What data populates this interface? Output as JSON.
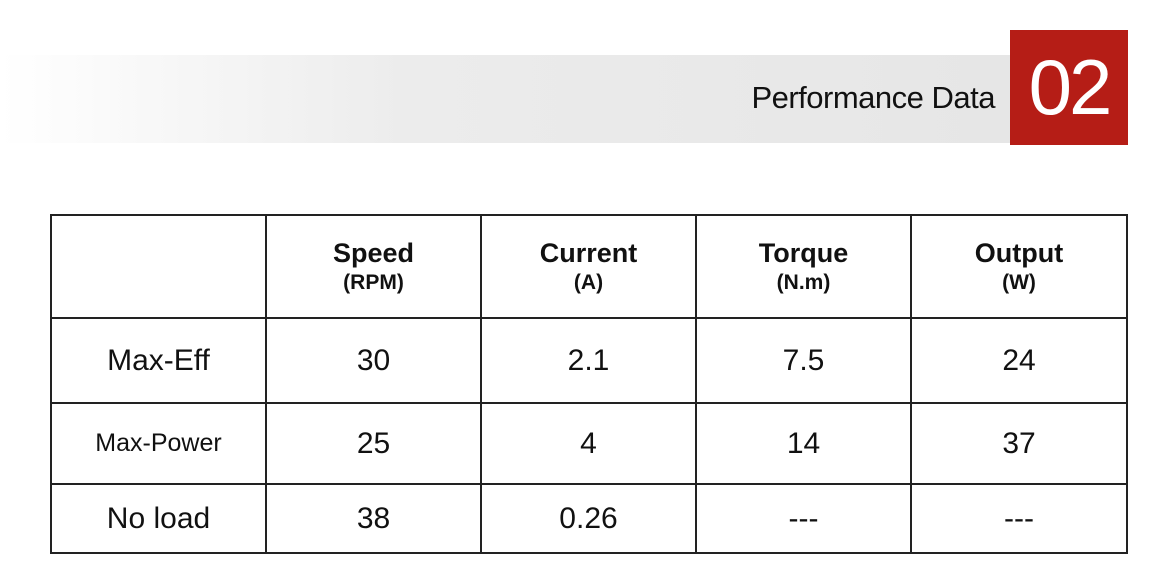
{
  "header": {
    "title": "Performance Data",
    "number": "02"
  },
  "table": {
    "columns": [
      {
        "name": "Speed",
        "unit": "(RPM)"
      },
      {
        "name": "Current",
        "unit": "(A)"
      },
      {
        "name": "Torque",
        "unit": "(N.m)"
      },
      {
        "name": "Output",
        "unit": "(W)"
      }
    ],
    "rows": [
      {
        "label": "Max-Eff",
        "cells": [
          30,
          2.1,
          7.5,
          24
        ]
      },
      {
        "label": "Max-Power",
        "cells": [
          25,
          4,
          14,
          37
        ]
      },
      {
        "label": "No load",
        "cells": [
          38,
          0.26,
          "---",
          "---"
        ]
      }
    ]
  }
}
